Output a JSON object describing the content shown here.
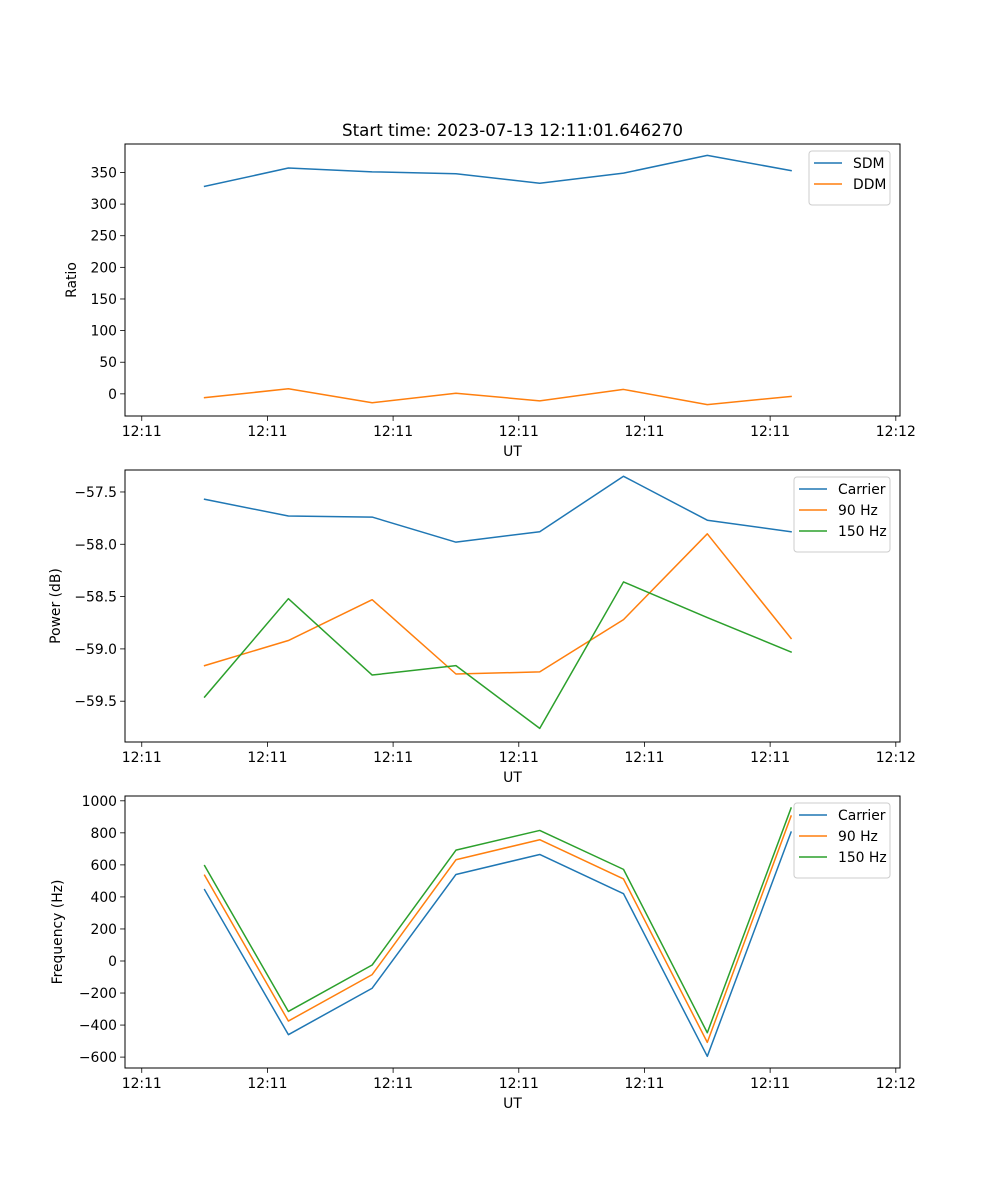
{
  "figure_title": "Start time: 2023-07-13 12:11:01.646270",
  "chart_data": [
    {
      "type": "line",
      "ylabel": "Ratio",
      "xlabel": "UT",
      "x_tick_labels": [
        "12:11",
        "12:11",
        "12:11",
        "12:11",
        "12:11",
        "12:11",
        "12:11"
      ],
      "x_last_tick_label": "12:12",
      "x": [
        1.5,
        3.5,
        5.5,
        7.5,
        9.5,
        11.5,
        13.5,
        15.5
      ],
      "xlim": [
        -0.4,
        18.1
      ],
      "ylim": [
        -35,
        395
      ],
      "yticks": [
        0,
        50,
        100,
        150,
        200,
        250,
        300,
        350
      ],
      "legend_position": "upper right",
      "series": [
        {
          "name": "SDM",
          "color": "#1f77b4",
          "values": [
            328,
            357,
            351,
            348,
            333,
            349,
            377,
            353
          ]
        },
        {
          "name": "DDM",
          "color": "#ff7f0e",
          "values": [
            -6,
            8,
            -14,
            1,
            -11,
            7,
            -17,
            -4
          ]
        }
      ]
    },
    {
      "type": "line",
      "ylabel": "Power (dB)",
      "xlabel": "UT",
      "x_tick_labels": [
        "12:11",
        "12:11",
        "12:11",
        "12:11",
        "12:11",
        "12:11",
        "12:11"
      ],
      "x_last_tick_label": "12:12",
      "x": [
        1.5,
        3.5,
        5.5,
        7.5,
        9.5,
        11.5,
        13.5,
        15.5
      ],
      "xlim": [
        -0.4,
        18.1
      ],
      "ylim": [
        -59.89,
        -57.29
      ],
      "yticks": [
        -59.5,
        -59.0,
        -58.5,
        -58.0,
        -57.5
      ],
      "ytick_labels": [
        "−59.5",
        "−59.0",
        "−58.5",
        "−58.0",
        "−57.5"
      ],
      "legend_position": "upper right",
      "series": [
        {
          "name": "Carrier",
          "color": "#1f77b4",
          "values": [
            -57.57,
            -57.73,
            -57.74,
            -57.98,
            -57.88,
            -57.35,
            -57.77,
            -57.88
          ]
        },
        {
          "name": "90 Hz",
          "color": "#ff7f0e",
          "values": [
            -59.16,
            -58.92,
            -58.53,
            -59.24,
            -59.22,
            -58.72,
            -57.9,
            -58.9
          ]
        },
        {
          "name": "150 Hz",
          "color": "#2ca02c",
          "values": [
            -59.46,
            -58.52,
            -59.25,
            -59.16,
            -59.76,
            -58.36,
            -58.7,
            -59.03
          ]
        }
      ]
    },
    {
      "type": "line",
      "ylabel": "Frequency (Hz)",
      "xlabel": "UT",
      "x_tick_labels": [
        "12:11",
        "12:11",
        "12:11",
        "12:11",
        "12:11",
        "12:11",
        "12:11"
      ],
      "x_last_tick_label": "12:12",
      "x": [
        1.5,
        3.5,
        5.5,
        7.5,
        9.5,
        11.5,
        13.5,
        15.5
      ],
      "xlim": [
        -0.4,
        18.1
      ],
      "ylim": [
        -668,
        1030
      ],
      "yticks": [
        -600,
        -400,
        -200,
        0,
        200,
        400,
        600,
        800,
        1000
      ],
      "ytick_labels": [
        "−600",
        "−400",
        "−200",
        "0",
        "200",
        "400",
        "600",
        "800",
        "1000"
      ],
      "legend_position": "upper right",
      "series": [
        {
          "name": "Carrier",
          "color": "#1f77b4",
          "values": [
            445,
            -460,
            -170,
            540,
            665,
            420,
            -595,
            805
          ]
        },
        {
          "name": "90 Hz",
          "color": "#ff7f0e",
          "values": [
            535,
            -375,
            -85,
            632,
            757,
            512,
            -508,
            905
          ]
        },
        {
          "name": "150 Hz",
          "color": "#2ca02c",
          "values": [
            595,
            -315,
            -25,
            692,
            815,
            572,
            -448,
            955
          ]
        }
      ]
    }
  ]
}
